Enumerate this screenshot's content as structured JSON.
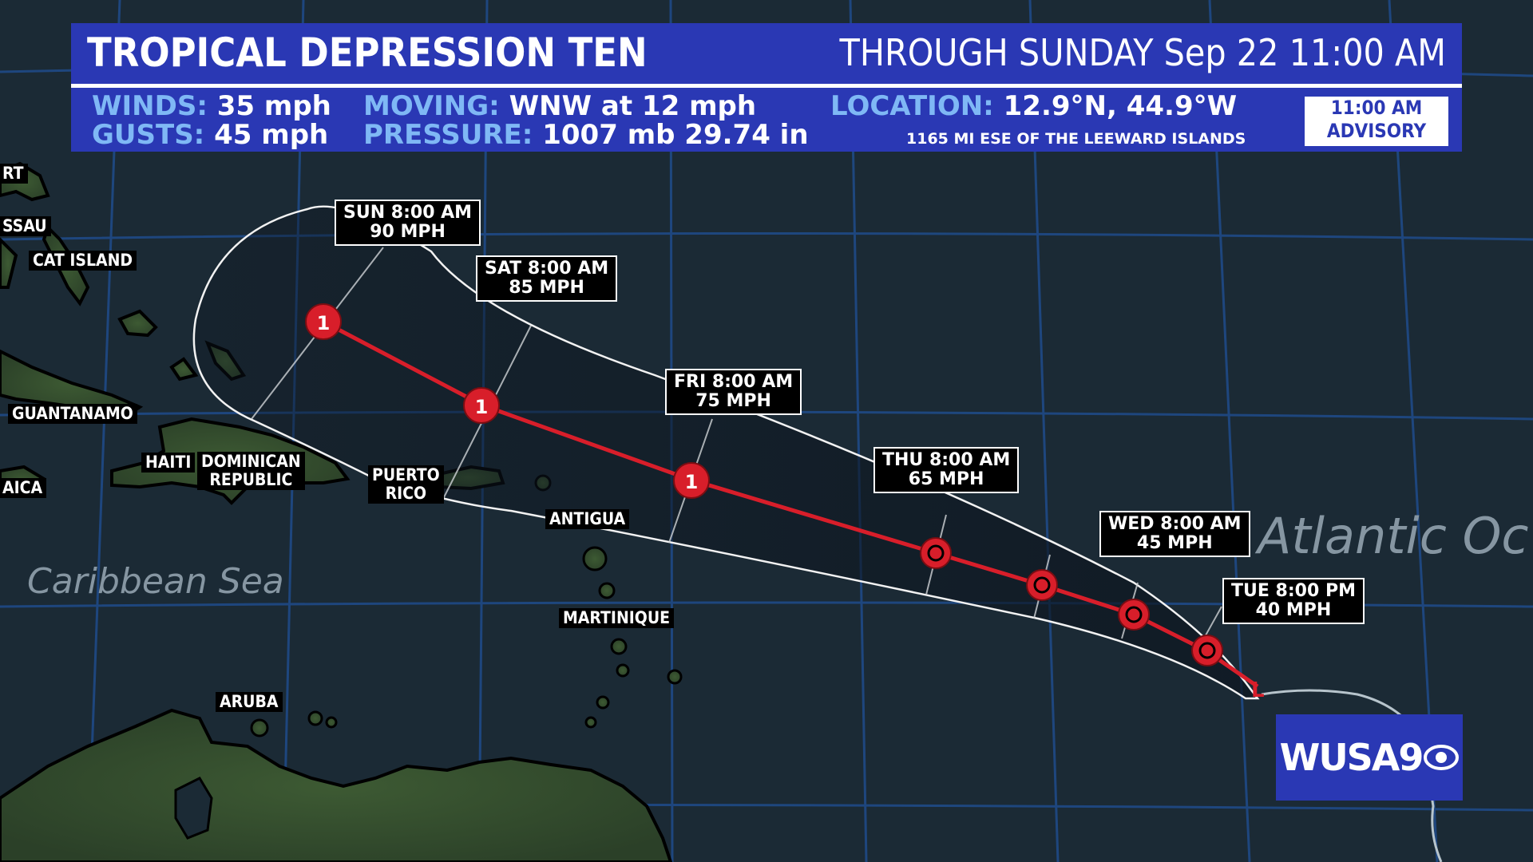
{
  "header": {
    "title": "TROPICAL DEPRESSION TEN",
    "through": "THROUGH SUNDAY Sep 22 11:00 AM",
    "winds_label": "WINDS:",
    "winds_value": "35 mph",
    "gusts_label": "GUSTS:",
    "gusts_value": "45 mph",
    "moving_label": "MOVING:",
    "moving_value": "WNW at 12 mph",
    "pressure_label": "PRESSURE:",
    "pressure_value": "1007 mb  29.74 in",
    "location_label": "LOCATION:",
    "location_value": "12.9°N, 44.9°W",
    "distance": "1165 MI ESE OF THE LEEWARD ISLANDS",
    "advisory_line1": "11:00 AM",
    "advisory_line2": "ADVISORY"
  },
  "forecast_points": [
    {
      "time": "TUE 8:00 PM",
      "speed": "40 MPH",
      "symbol": "L"
    },
    {
      "time": "WED 8:00 AM",
      "speed": "45 MPH",
      "symbol": "tropical-storm"
    },
    {
      "time": "THU 8:00 AM",
      "speed": "65 MPH",
      "symbol": "tropical-storm"
    },
    {
      "time": "FRI 8:00 AM",
      "speed": "75 MPH",
      "symbol": "1"
    },
    {
      "time": "SAT 8:00 AM",
      "speed": "85 MPH",
      "symbol": "1"
    },
    {
      "time": "SUN 8:00 AM",
      "speed": "90 MPH",
      "symbol": "1"
    }
  ],
  "places": {
    "freeport_partial": "RT",
    "nassau_partial": "SSAU",
    "cat_island": "CAT ISLAND",
    "guantanamo": "GUANTANAMO",
    "haiti": "HAITI",
    "dominican_line1": "DOMINICAN",
    "dominican_line2": "REPUBLIC",
    "jamaica_partial": "AICA",
    "puerto_rico_line1": "PUERTO",
    "puerto_rico_line2": "RICO",
    "antigua": "ANTIGUA",
    "martinique": "MARTINIQUE",
    "aruba": "ARUBA"
  },
  "seas": {
    "caribbean": "Caribbean Sea",
    "atlantic_partial": "Atlantic Oc"
  },
  "colors": {
    "header_blue": "#2a38b4",
    "label_blue": "#7fb8f5",
    "track_red": "#d81e2a",
    "ocean": "#1b2a35"
  },
  "logo": {
    "text": "WUSA9",
    "icon": "cbs-eye-icon"
  }
}
